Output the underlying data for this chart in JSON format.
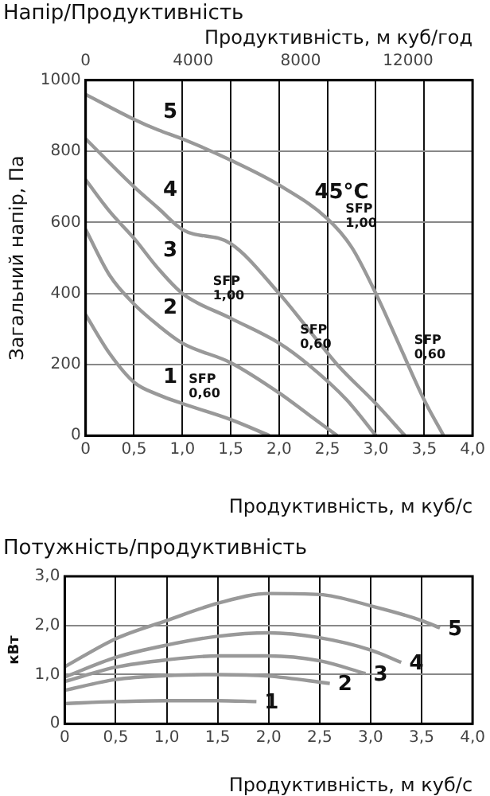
{
  "chart_data": [
    {
      "type": "line",
      "title": "Напір/Продуктивність",
      "xlabel": "Продуктивність, м куб/с",
      "x2label": "Продуктивність, м куб/год",
      "ylabel": "Загальний напір, Па",
      "xlim": [
        0,
        4
      ],
      "xticks": [
        0,
        {
          "value": 0.5,
          "label": "0,5"
        },
        {
          "value": 1,
          "label": "1,0"
        },
        {
          "value": 1.5,
          "label": "1,5"
        },
        {
          "value": 2,
          "label": "2,0"
        },
        {
          "value": 2.5,
          "label": "2,5"
        },
        {
          "value": 3,
          "label": "3,0"
        },
        {
          "value": 3.5,
          "label": "3,5"
        },
        {
          "value": 4,
          "label": "4,0"
        }
      ],
      "x2lim": [
        0,
        14400
      ],
      "x2ticks": [
        0,
        4000,
        8000,
        12000
      ],
      "ylim": [
        0,
        1000
      ],
      "yticks": [
        0,
        200,
        400,
        600,
        800,
        1000
      ],
      "grid": true,
      "legend": false,
      "marker": "none",
      "line_style": "solid",
      "series": [
        {
          "name": "1",
          "color": "#999999",
          "x": [
            0,
            0.25,
            0.5,
            0.75,
            1,
            1.5,
            1.9
          ],
          "values": [
            340,
            230,
            150,
            115,
            90,
            45,
            0
          ]
        },
        {
          "name": "2",
          "color": "#999999",
          "x": [
            0,
            0.25,
            0.5,
            0.75,
            1,
            1.5,
            2,
            2.3,
            2.6
          ],
          "values": [
            580,
            450,
            370,
            310,
            260,
            205,
            120,
            60,
            0
          ]
        },
        {
          "name": "3",
          "color": "#999999",
          "x": [
            0,
            0.25,
            0.5,
            0.75,
            1,
            1.5,
            2,
            2.3,
            2.7,
            3
          ],
          "values": [
            720,
            630,
            555,
            470,
            400,
            330,
            260,
            200,
            100,
            0
          ]
        },
        {
          "name": "4",
          "color": "#999999",
          "x": [
            0,
            0.5,
            0.75,
            1,
            1.5,
            2,
            2.3,
            2.6,
            3,
            3.3
          ],
          "values": [
            835,
            700,
            640,
            580,
            540,
            400,
            300,
            200,
            90,
            0
          ]
        },
        {
          "name": "5",
          "color": "#999999",
          "x": [
            0,
            0.5,
            0.75,
            1,
            1.5,
            2,
            2.5,
            2.75,
            3,
            3.25,
            3.5,
            3.7
          ],
          "values": [
            960,
            890,
            860,
            835,
            775,
            705,
            610,
            530,
            400,
            250,
            100,
            0
          ]
        }
      ],
      "annotations": [
        {
          "text": "45°C",
          "x": 2.3,
          "y": 650
        },
        {
          "text": "SFP 1,00",
          "x": 2.62,
          "y": 570
        },
        {
          "text": "SFP 1,00",
          "x": 1.25,
          "y": 365
        },
        {
          "text": "SFP 0,60",
          "x": 2.15,
          "y": 230
        },
        {
          "text": "SFP 0,60",
          "x": 3.33,
          "y": 200
        },
        {
          "text": "SFP 0,60",
          "x": 1,
          "y": 90
        }
      ]
    },
    {
      "type": "line",
      "title": "Потужність/продуктивність",
      "xlabel": "Продуктивність, м куб/с",
      "ylabel": "кВт",
      "xlim": [
        0,
        4
      ],
      "xticks": [
        0,
        {
          "value": 0.5,
          "label": "0,5"
        },
        {
          "value": 1,
          "label": "1,0"
        },
        {
          "value": 1.5,
          "label": "1,5"
        },
        {
          "value": 2,
          "label": "2,0"
        },
        {
          "value": 2.5,
          "label": "2,5"
        },
        {
          "value": 3,
          "label": "3,0"
        },
        {
          "value": 3.5,
          "label": "3,5"
        },
        {
          "value": 4,
          "label": "4,0"
        }
      ],
      "ylim": [
        0,
        3
      ],
      "yticks": [
        0,
        {
          "value": 1,
          "label": "1,0"
        },
        {
          "value": 2,
          "label": "2,0"
        },
        {
          "value": 3,
          "label": "3,0"
        }
      ],
      "grid": true,
      "legend": false,
      "marker": "none",
      "line_style": "solid",
      "series": [
        {
          "name": "1",
          "color": "#999999",
          "x": [
            0,
            0.5,
            1,
            1.5,
            1.88
          ],
          "values": [
            0.41,
            0.45,
            0.47,
            0.47,
            0.45
          ]
        },
        {
          "name": "2",
          "color": "#999999",
          "x": [
            0,
            0.5,
            1,
            1.5,
            2,
            2.6
          ],
          "values": [
            0.68,
            0.9,
            0.98,
            1,
            0.97,
            0.82
          ]
        },
        {
          "name": "3",
          "color": "#999999",
          "x": [
            0,
            0.5,
            1,
            1.5,
            2,
            2.5,
            2.95
          ],
          "values": [
            0.86,
            1.15,
            1.3,
            1.38,
            1.38,
            1.28,
            1.02
          ]
        },
        {
          "name": "4",
          "color": "#999999",
          "x": [
            0,
            0.5,
            1,
            1.5,
            2,
            2.5,
            3,
            3.3
          ],
          "values": [
            0.95,
            1.35,
            1.6,
            1.78,
            1.85,
            1.75,
            1.5,
            1.25
          ]
        },
        {
          "name": "5",
          "color": "#999999",
          "x": [
            0,
            0.5,
            1,
            1.5,
            2,
            2.5,
            3,
            3.5,
            3.68
          ],
          "values": [
            1.16,
            1.73,
            2.1,
            2.45,
            2.65,
            2.63,
            2.4,
            2.1,
            1.95
          ]
        }
      ]
    }
  ]
}
